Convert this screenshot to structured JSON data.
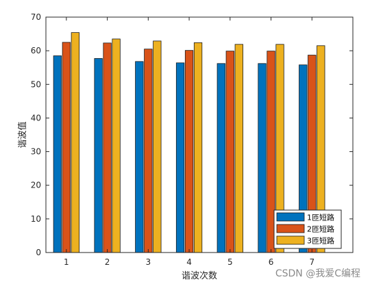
{
  "chart_data": {
    "type": "bar",
    "categories": [
      "1",
      "2",
      "3",
      "4",
      "5",
      "6",
      "7"
    ],
    "series": [
      {
        "name": "1匝短路",
        "color": "#0072BD",
        "values": [
          58.5,
          57.7,
          56.8,
          56.4,
          56.2,
          56.2,
          55.8
        ]
      },
      {
        "name": "2匝短路",
        "color": "#D95319",
        "values": [
          62.5,
          62.3,
          60.5,
          60.1,
          59.9,
          59.9,
          58.7
        ]
      },
      {
        "name": "3匝短路",
        "color": "#EDB120",
        "values": [
          65.4,
          63.5,
          62.9,
          62.4,
          61.9,
          61.9,
          61.5
        ]
      }
    ],
    "xlabel": "谐波次数",
    "ylabel": "谐波值",
    "ylim": [
      0,
      70
    ],
    "yticks": [
      0,
      10,
      20,
      30,
      40,
      50,
      60,
      70
    ],
    "legend_position": "bottom-right",
    "grid": false
  },
  "watermark": "CSDN @我爱C编程"
}
